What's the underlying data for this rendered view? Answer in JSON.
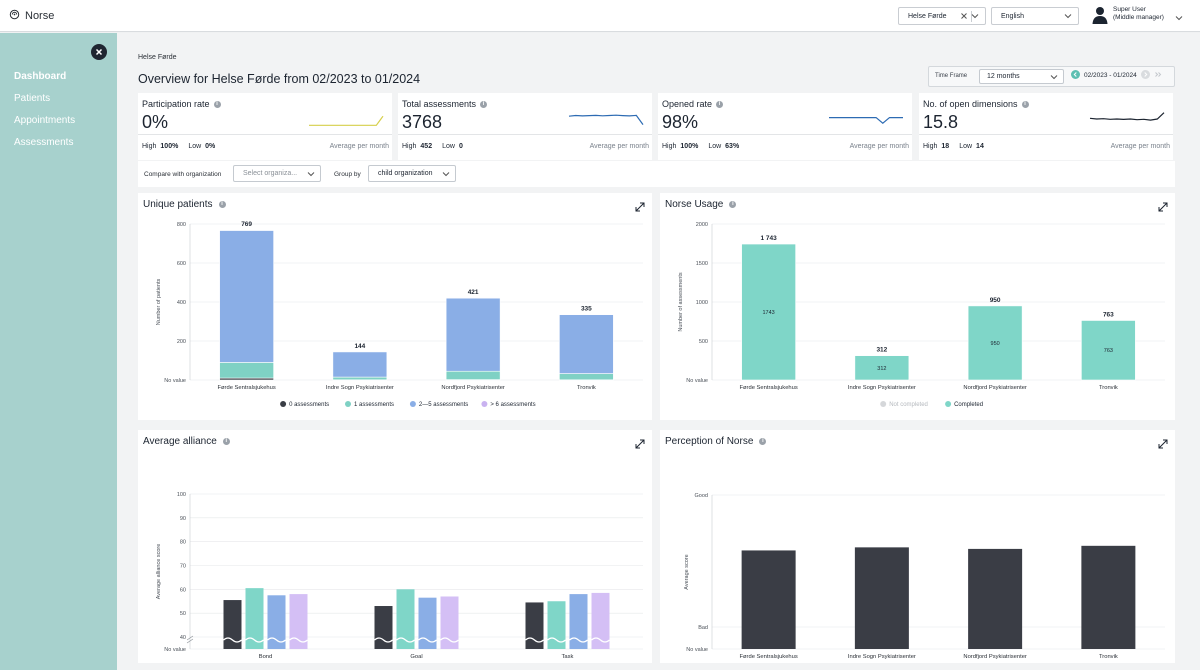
{
  "app": {
    "name": "Norse"
  },
  "topbar": {
    "org_selector_value": "Helse Førde",
    "language_value": "English",
    "user_name": "Super User",
    "user_role": "(Middle manager)"
  },
  "sidebar": {
    "items": [
      {
        "label": "Dashboard",
        "active": true
      },
      {
        "label": "Patients",
        "active": false
      },
      {
        "label": "Appointments",
        "active": false
      },
      {
        "label": "Assessments",
        "active": false
      }
    ]
  },
  "breadcrumb": "Helse Førde",
  "page_title": "Overview for Helse Førde from 02/2023 to 01/2024",
  "time_frame": {
    "label": "Time Frame",
    "value": "12 months",
    "range": "02/2023 - 01/2024"
  },
  "kpis": [
    {
      "title": "Participation rate",
      "value": "0%",
      "high_label": "High",
      "high": "100%",
      "low_label": "Low",
      "low": "0%",
      "avg_label": "Average per month",
      "color": "#d6cf4a",
      "spark": [
        0.05,
        0.05,
        0.05,
        0.05,
        0.05,
        0.05,
        0.05,
        0.05,
        0.05,
        0.05,
        0.05,
        0.7
      ]
    },
    {
      "title": "Total assessments",
      "value": "3768",
      "high_label": "High",
      "high": "452",
      "low_label": "Low",
      "low": "0",
      "avg_label": "Average per month",
      "color": "#2d6bb3",
      "spark": [
        0.7,
        0.75,
        0.72,
        0.74,
        0.76,
        0.73,
        0.75,
        0.77,
        0.74,
        0.72,
        0.76,
        0.1
      ]
    },
    {
      "title": "Opened rate",
      "value": "98%",
      "high_label": "High",
      "high": "100%",
      "low_label": "Low",
      "low": "63%",
      "avg_label": "Average per month",
      "color": "#2d6bb3",
      "spark": [
        0.6,
        0.6,
        0.6,
        0.6,
        0.6,
        0.6,
        0.6,
        0.6,
        0.2,
        0.6,
        0.6,
        0.6
      ]
    },
    {
      "title": "No. of open dimensions",
      "value": "15.8",
      "high_label": "High",
      "high": "18",
      "low_label": "Low",
      "low": "14",
      "avg_label": "Average per month",
      "color": "#1c2430",
      "spark": [
        0.55,
        0.5,
        0.52,
        0.48,
        0.5,
        0.47,
        0.5,
        0.45,
        0.48,
        0.42,
        0.5,
        0.95
      ]
    }
  ],
  "filters": {
    "compare_label": "Compare with organization",
    "compare_placeholder": "Select organiza...",
    "group_label": "Group by",
    "group_value": "child organization"
  },
  "chart_data": [
    {
      "id": "unique-patients",
      "type": "bar",
      "title": "Unique patients",
      "ylabel": "Number of patients",
      "ylim": [
        0,
        800
      ],
      "yticks": [
        "No value",
        "200",
        "400",
        "600",
        "800"
      ],
      "categories": [
        "Førde Sentralsjukehus",
        "Indre Sogn Psykiatrisenter",
        "Nordfjord Psykiatrisenter",
        "Tronvik"
      ],
      "totals": [
        "769",
        "144",
        "421",
        "335"
      ],
      "series": [
        {
          "name": "0 assessments",
          "color": "#3a3d45",
          "values": [
            10,
            1,
            2,
            1
          ]
        },
        {
          "name": "1 assessments",
          "color": "#7fd1c4",
          "values": [
            80,
            14,
            43,
            32
          ]
        },
        {
          "name": "2—5 assessments",
          "color": "#8aaee6",
          "values": [
            677,
            129,
            375,
            302
          ]
        },
        {
          "name": "> 6 assessments",
          "color": "#c9b2f0",
          "values": [
            2,
            0,
            1,
            0
          ]
        }
      ]
    },
    {
      "id": "norse-usage",
      "type": "bar",
      "title": "Norse Usage",
      "ylabel": "Number of assessments",
      "ylim": [
        0,
        2000
      ],
      "yticks": [
        "No value",
        "500",
        "1000",
        "1500",
        "2000"
      ],
      "categories": [
        "Førde Sentralsjukehus",
        "Indre Sogn Psykiatrisenter",
        "Nordfjord Psykiatrisenter",
        "Tronvik"
      ],
      "totals": [
        "1 743",
        "312",
        "950",
        "763"
      ],
      "inner_labels": [
        "1743",
        "312",
        "950",
        "763"
      ],
      "series": [
        {
          "name": "Not completed",
          "color": "#d5d7da",
          "values": [
            0,
            0,
            0,
            0
          ]
        },
        {
          "name": "Completed",
          "color": "#7fd6c8",
          "values": [
            1743,
            312,
            950,
            763
          ]
        }
      ]
    },
    {
      "id": "average-alliance",
      "type": "bar",
      "title": "Average alliance",
      "ylabel": "Average alliance score",
      "ylim": [
        40,
        100
      ],
      "yticks": [
        "No value",
        "40",
        "50",
        "60",
        "70",
        "80",
        "90",
        "100"
      ],
      "categories": [
        "Bond",
        "Goal",
        "Task"
      ],
      "series": [
        {
          "name": "Førde Sentralsjukehus",
          "color": "#3a3d45",
          "values": [
            55.5,
            53,
            54.5
          ]
        },
        {
          "name": "Indre Sogn Psykiatrisenter",
          "color": "#7fd6c8",
          "values": [
            60.5,
            60,
            55
          ]
        },
        {
          "name": "Nordfjord Psykiatrisenter",
          "color": "#8aaee6",
          "values": [
            57.5,
            56.5,
            58
          ]
        },
        {
          "name": "Tronvik",
          "color": "#d4bff5",
          "values": [
            58,
            57,
            58.5
          ]
        }
      ]
    },
    {
      "id": "perception-of-norse",
      "type": "bar",
      "title": "Perception of Norse",
      "ylabel": "Average score",
      "yticks": [
        "No value",
        "Bad",
        "Good"
      ],
      "categories": [
        "Førde Sentralsjukehus",
        "Indre Sogn Psykiatrisenter",
        "Nordfjord Psykiatrisenter",
        "Tronvik"
      ],
      "series": [
        {
          "name": "Perception of Norse",
          "color": "#3a3d45",
          "values": [
            0.64,
            0.66,
            0.65,
            0.67
          ]
        }
      ]
    }
  ]
}
